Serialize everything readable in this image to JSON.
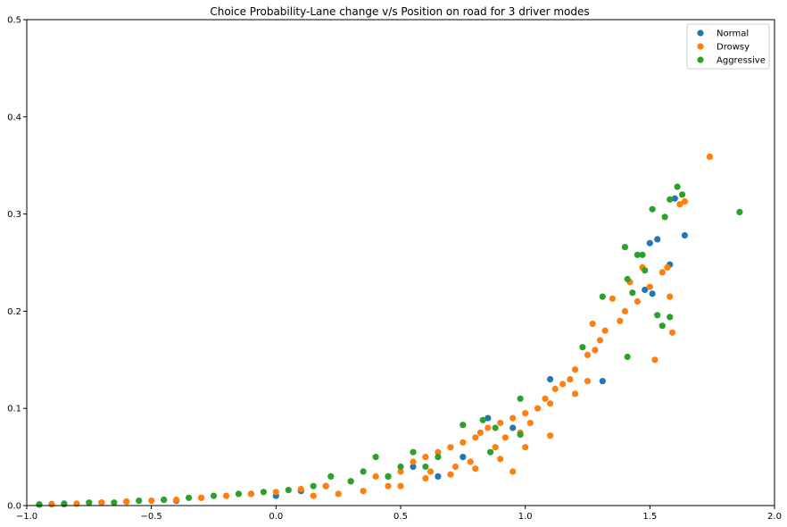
{
  "chart_data": {
    "type": "scatter",
    "title": "Choice Probability-Lane change v/s Position on road for 3 driver modes",
    "xlabel": "",
    "ylabel": "",
    "xlim": [
      -1.0,
      2.0
    ],
    "ylim": [
      0.0,
      0.5
    ],
    "x_ticks": [
      "−1.0",
      "−0.5",
      "0.0",
      "0.5",
      "1.0",
      "1.5",
      "2.0"
    ],
    "x_tick_values": [
      -1.0,
      -0.5,
      0.0,
      0.5,
      1.0,
      1.5,
      2.0
    ],
    "y_ticks": [
      "0.0",
      "0.1",
      "0.2",
      "0.3",
      "0.4",
      "0.5"
    ],
    "y_tick_values": [
      0.0,
      0.1,
      0.2,
      0.3,
      0.4,
      0.5
    ],
    "grid": false,
    "legend_position": "top-right",
    "series": [
      {
        "name": "Normal",
        "color": "#1f77b4",
        "points": [
          [
            -0.95,
            0.001
          ],
          [
            -0.9,
            0.0015
          ],
          [
            -0.85,
            0.002
          ],
          [
            -0.7,
            0.003
          ],
          [
            -0.6,
            0.004
          ],
          [
            -0.45,
            0.006
          ],
          [
            -0.4,
            0.005
          ],
          [
            -0.3,
            0.008
          ],
          [
            -0.1,
            0.012
          ],
          [
            0.0,
            0.01
          ],
          [
            0.1,
            0.015
          ],
          [
            0.2,
            0.02
          ],
          [
            0.3,
            0.025
          ],
          [
            0.45,
            0.03
          ],
          [
            0.55,
            0.04
          ],
          [
            0.65,
            0.03
          ],
          [
            0.75,
            0.05
          ],
          [
            0.85,
            0.09
          ],
          [
            0.95,
            0.08
          ],
          [
            1.1,
            0.13
          ],
          [
            1.31,
            0.128
          ],
          [
            1.48,
            0.222
          ],
          [
            1.5,
            0.27
          ],
          [
            1.51,
            0.218
          ],
          [
            1.53,
            0.274
          ],
          [
            1.58,
            0.248
          ],
          [
            1.6,
            0.316
          ],
          [
            1.64,
            0.278
          ]
        ]
      },
      {
        "name": "Drowsy",
        "color": "#ff7f0e",
        "points": [
          [
            -0.95,
            0.001
          ],
          [
            -0.9,
            0.0012
          ],
          [
            -0.8,
            0.002
          ],
          [
            -0.7,
            0.003
          ],
          [
            -0.6,
            0.004
          ],
          [
            -0.5,
            0.005
          ],
          [
            -0.4,
            0.006
          ],
          [
            -0.3,
            0.008
          ],
          [
            -0.2,
            0.01
          ],
          [
            -0.1,
            0.012
          ],
          [
            0.0,
            0.014
          ],
          [
            0.1,
            0.017
          ],
          [
            0.15,
            0.01
          ],
          [
            0.2,
            0.02
          ],
          [
            0.25,
            0.012
          ],
          [
            0.3,
            0.025
          ],
          [
            0.35,
            0.015
          ],
          [
            0.4,
            0.03
          ],
          [
            0.45,
            0.02
          ],
          [
            0.5,
            0.035
          ],
          [
            0.55,
            0.045
          ],
          [
            0.6,
            0.05
          ],
          [
            0.62,
            0.035
          ],
          [
            0.65,
            0.055
          ],
          [
            0.7,
            0.06
          ],
          [
            0.72,
            0.04
          ],
          [
            0.75,
            0.065
          ],
          [
            0.78,
            0.045
          ],
          [
            0.8,
            0.07
          ],
          [
            0.82,
            0.075
          ],
          [
            0.85,
            0.08
          ],
          [
            0.88,
            0.06
          ],
          [
            0.9,
            0.085
          ],
          [
            0.92,
            0.07
          ],
          [
            0.95,
            0.09
          ],
          [
            0.98,
            0.075
          ],
          [
            1.0,
            0.095
          ],
          [
            1.02,
            0.085
          ],
          [
            1.05,
            0.1
          ],
          [
            1.08,
            0.11
          ],
          [
            1.1,
            0.105
          ],
          [
            1.12,
            0.12
          ],
          [
            1.15,
            0.125
          ],
          [
            1.18,
            0.13
          ],
          [
            1.2,
            0.14
          ],
          [
            1.25,
            0.155
          ],
          [
            1.27,
            0.187
          ],
          [
            1.28,
            0.16
          ],
          [
            1.3,
            0.17
          ],
          [
            1.32,
            0.18
          ],
          [
            1.35,
            0.213
          ],
          [
            1.38,
            0.19
          ],
          [
            1.4,
            0.2
          ],
          [
            1.42,
            0.23
          ],
          [
            1.45,
            0.21
          ],
          [
            1.47,
            0.245
          ],
          [
            1.5,
            0.225
          ],
          [
            1.52,
            0.15
          ],
          [
            1.55,
            0.24
          ],
          [
            1.57,
            0.245
          ],
          [
            1.58,
            0.215
          ],
          [
            1.59,
            0.178
          ],
          [
            1.62,
            0.31
          ],
          [
            1.64,
            0.313
          ],
          [
            1.74,
            0.359
          ],
          [
            0.9,
            0.048
          ],
          [
            0.95,
            0.035
          ],
          [
            1.0,
            0.06
          ],
          [
            1.1,
            0.072
          ],
          [
            0.5,
            0.02
          ],
          [
            0.6,
            0.028
          ],
          [
            0.7,
            0.032
          ],
          [
            0.8,
            0.038
          ],
          [
            1.2,
            0.115
          ],
          [
            1.25,
            0.128
          ]
        ]
      },
      {
        "name": "Aggressive",
        "color": "#2ca02c",
        "points": [
          [
            -0.95,
            0.001
          ],
          [
            -0.85,
            0.0015
          ],
          [
            -0.75,
            0.003
          ],
          [
            -0.65,
            0.003
          ],
          [
            -0.55,
            0.005
          ],
          [
            -0.45,
            0.006
          ],
          [
            -0.35,
            0.008
          ],
          [
            -0.25,
            0.01
          ],
          [
            -0.15,
            0.012
          ],
          [
            -0.05,
            0.014
          ],
          [
            0.05,
            0.016
          ],
          [
            0.15,
            0.02
          ],
          [
            0.22,
            0.03
          ],
          [
            0.3,
            0.025
          ],
          [
            0.35,
            0.035
          ],
          [
            0.4,
            0.05
          ],
          [
            0.45,
            0.03
          ],
          [
            0.5,
            0.04
          ],
          [
            0.55,
            0.055
          ],
          [
            0.6,
            0.04
          ],
          [
            0.65,
            0.05
          ],
          [
            0.75,
            0.083
          ],
          [
            0.83,
            0.088
          ],
          [
            0.86,
            0.055
          ],
          [
            0.88,
            0.08
          ],
          [
            0.98,
            0.11
          ],
          [
            0.98,
            0.073
          ],
          [
            1.23,
            0.163
          ],
          [
            1.31,
            0.215
          ],
          [
            1.4,
            0.266
          ],
          [
            1.41,
            0.233
          ],
          [
            1.41,
            0.153
          ],
          [
            1.43,
            0.219
          ],
          [
            1.45,
            0.258
          ],
          [
            1.47,
            0.258
          ],
          [
            1.48,
            0.242
          ],
          [
            1.51,
            0.305
          ],
          [
            1.53,
            0.196
          ],
          [
            1.55,
            0.185
          ],
          [
            1.56,
            0.297
          ],
          [
            1.58,
            0.194
          ],
          [
            1.58,
            0.315
          ],
          [
            1.61,
            0.328
          ],
          [
            1.63,
            0.32
          ],
          [
            1.86,
            0.302
          ]
        ]
      }
    ]
  }
}
